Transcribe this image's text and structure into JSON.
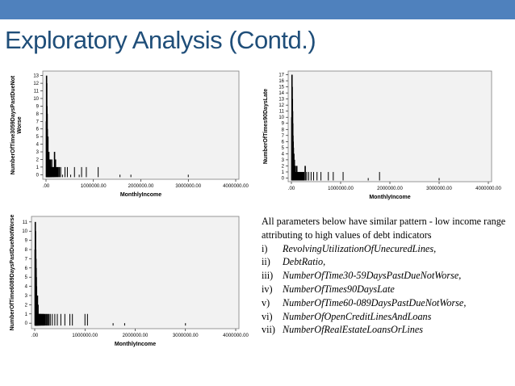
{
  "slide": {
    "title": "Exploratory Analysis (Contd.)",
    "colors": {
      "top_bar": "#4f81bd",
      "title": "#1f4e79",
      "bars": "#000000",
      "plot_background": "#f2f2f2"
    }
  },
  "notes": {
    "intro": "All parameters below have similar pattern - low income range attributing to high values of debt indicators",
    "items": [
      {
        "num": "i)",
        "text": "RevolvingUtilizationOfUnecuredLines,"
      },
      {
        "num": "ii)",
        "text": "DebtRatio,"
      },
      {
        "num": "iii)",
        "text": "NumberOfTime30-59DaysPastDueNotWorse,"
      },
      {
        "num": "iv)",
        "text": "NumberOfTimes90DaysLate"
      },
      {
        "num": "v)",
        "text": "NumberOfTime60-089DaysPastDueNotWorse,"
      },
      {
        "num": "vi)",
        "text": "NumberOfOpenCreditLinesAndLoans"
      },
      {
        "num": "vii)",
        "text": "NumberOfRealEstateLoansOrLines"
      }
    ]
  },
  "chart_data": [
    {
      "type": "bar",
      "xlabel": "MonthlyIncome",
      "ylabel": "NumberOfTime3059DaysPastDueNot Worse",
      "xlim": [
        0,
        4000000
      ],
      "ylim": [
        -0.6,
        13.6
      ],
      "x_ticks": [
        0,
        1000000,
        2000000,
        3000000,
        4000000
      ],
      "x_tick_labels": [
        ".00",
        "1000000.00",
        "2000000.00",
        "3000000.00",
        "4000000.00"
      ],
      "y_ticks": [
        0,
        1,
        2,
        3,
        4,
        5,
        6,
        7,
        8,
        9,
        10,
        11,
        12,
        13
      ],
      "y_tick_labels": [
        "0",
        "1",
        "2",
        "3",
        "4",
        "5",
        "6",
        "7",
        "8",
        "9",
        "10",
        "11",
        "12",
        "13"
      ],
      "grid": false,
      "x": [
        8000,
        12000,
        16000,
        20000,
        24000,
        28000,
        32000,
        36000,
        40000,
        45000,
        50000,
        55000,
        60000,
        66000,
        72000,
        80000,
        90000,
        100000,
        110000,
        120000,
        135000,
        150000,
        165000,
        180000,
        200000,
        225000,
        250000,
        280000,
        310000,
        350000,
        400000,
        450000,
        520000,
        600000,
        700000,
        750000,
        850000,
        1100000,
        1560000,
        1790000,
        3000000
      ],
      "values": [
        7,
        13,
        12,
        9,
        8,
        6,
        5,
        4,
        5,
        3,
        3,
        2,
        3,
        2,
        2,
        1,
        2,
        1,
        1,
        2,
        1,
        1,
        1,
        3,
        2,
        1,
        1,
        1,
        1,
        0,
        1,
        1,
        0,
        1,
        0,
        1,
        1,
        1,
        0,
        0,
        0
      ]
    },
    {
      "type": "bar",
      "xlabel": "MonthlyIncome",
      "ylabel": "NumberOfTimes90DaysLate",
      "xlim": [
        0,
        4000000
      ],
      "ylim": [
        -0.6,
        17.6
      ],
      "x_ticks": [
        0,
        1000000,
        2000000,
        3000000,
        4000000
      ],
      "x_tick_labels": [
        ".00",
        "1000000.00",
        "2000000.00",
        "3000000.00",
        "4000000.00"
      ],
      "y_ticks": [
        0,
        1,
        2,
        3,
        4,
        5,
        6,
        7,
        8,
        9,
        10,
        11,
        12,
        13,
        14,
        15,
        16,
        17
      ],
      "y_tick_labels": [
        "0",
        "1",
        "2",
        "3",
        "4",
        "5",
        "6",
        "7",
        "8",
        "9",
        "10",
        "11",
        "12",
        "13",
        "14",
        "15",
        "16",
        "17"
      ],
      "grid": false,
      "x": [
        8000,
        12000,
        16000,
        20000,
        24000,
        28000,
        32000,
        36000,
        40000,
        45000,
        50000,
        55000,
        60000,
        66000,
        72000,
        80000,
        90000,
        100000,
        110000,
        120000,
        135000,
        150000,
        165000,
        180000,
        200000,
        225000,
        250000,
        280000,
        310000,
        350000,
        400000,
        450000,
        520000,
        600000,
        750000,
        850000,
        1050000,
        1560000,
        1790000,
        3000000
      ],
      "values": [
        10,
        17,
        15,
        13,
        11,
        9,
        7,
        6,
        5,
        4,
        4,
        3,
        3,
        2,
        2,
        2,
        1,
        1,
        2,
        1,
        1,
        1,
        1,
        1,
        1,
        1,
        1,
        2,
        1,
        1,
        1,
        1,
        1,
        1,
        1,
        1,
        1,
        0,
        1,
        0
      ]
    },
    {
      "type": "bar",
      "xlabel": "MonthlyIncome",
      "ylabel": "NumberOfTime6089DaysPastDueNotWorse",
      "xlim": [
        0,
        4000000
      ],
      "ylim": [
        -0.6,
        11.6
      ],
      "x_ticks": [
        0,
        1000000,
        2000000,
        3000000,
        4000000
      ],
      "x_tick_labels": [
        ".00",
        "1000000.00",
        "2000000.00",
        "3000000.00",
        "4000000.00"
      ],
      "y_ticks": [
        0,
        1,
        2,
        3,
        4,
        5,
        6,
        7,
        8,
        9,
        10,
        11
      ],
      "y_tick_labels": [
        "0",
        "1",
        "2",
        "3",
        "4",
        "5",
        "6",
        "7",
        "8",
        "9",
        "10",
        "11"
      ],
      "grid": false,
      "x": [
        8000,
        12000,
        16000,
        20000,
        24000,
        28000,
        32000,
        36000,
        40000,
        45000,
        50000,
        55000,
        60000,
        66000,
        72000,
        80000,
        90000,
        100000,
        110000,
        120000,
        135000,
        150000,
        165000,
        180000,
        200000,
        225000,
        250000,
        280000,
        310000,
        350000,
        400000,
        450000,
        520000,
        600000,
        700000,
        750000,
        1000000,
        1050000,
        1560000,
        1790000,
        3000000
      ],
      "values": [
        8,
        11,
        10,
        8,
        7,
        6,
        5,
        4,
        3,
        3,
        2,
        3,
        2,
        2,
        1,
        1,
        1,
        1,
        1,
        1,
        1,
        1,
        1,
        1,
        1,
        1,
        1,
        1,
        1,
        1,
        1,
        1,
        1,
        1,
        1,
        1,
        1,
        1,
        0,
        0,
        0
      ]
    }
  ]
}
